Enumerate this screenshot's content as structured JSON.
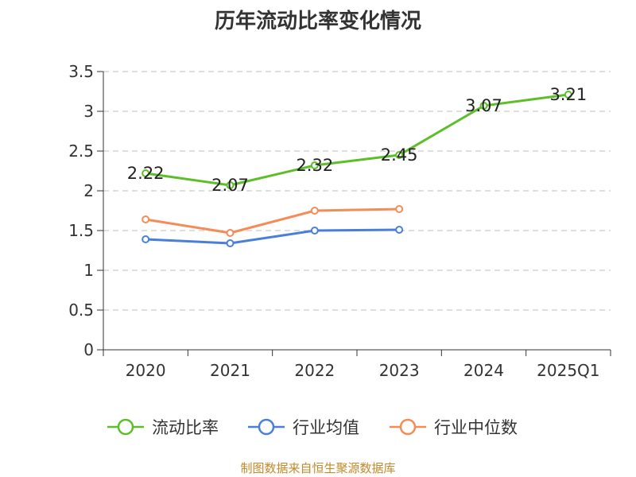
{
  "chart_data": {
    "type": "line",
    "title": "历年流动比率变化情况",
    "categories": [
      "2020",
      "2021",
      "2022",
      "2023",
      "2024",
      "2025Q1"
    ],
    "ylim": [
      0,
      3.5
    ],
    "yticks": [
      "0",
      "0.5",
      "1",
      "1.5",
      "2",
      "2.5",
      "3",
      "3.5"
    ],
    "grid": true,
    "legend_position": "bottom",
    "series": [
      {
        "name": "流动比率",
        "color": "#5cbf2a",
        "values": [
          2.22,
          2.07,
          2.32,
          2.45,
          3.07,
          3.21
        ],
        "labels": [
          "2.22",
          "2.07",
          "2.32",
          "2.45",
          "3.07",
          "3.21"
        ]
      },
      {
        "name": "行业均值",
        "color": "#4a7fd9",
        "values": [
          1.39,
          1.34,
          1.5,
          1.51,
          null,
          null
        ]
      },
      {
        "name": "行业中位数",
        "color": "#f58b57",
        "values": [
          1.64,
          1.47,
          1.75,
          1.77,
          null,
          null
        ]
      }
    ],
    "source": "制图数据来自恒生聚源数据库"
  }
}
